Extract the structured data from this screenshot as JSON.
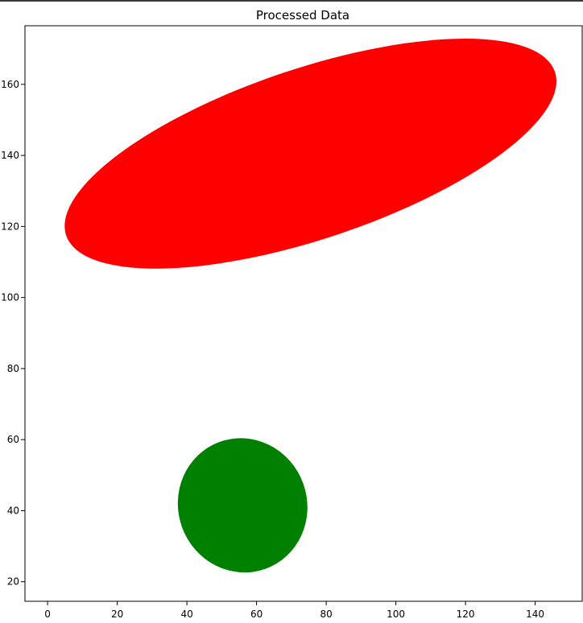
{
  "chart_data": {
    "type": "scatter",
    "title": "Processed Data",
    "xlabel": "",
    "ylabel": "",
    "xlim": [
      -6.5,
      153.5
    ],
    "ylim": [
      14.5,
      176.5
    ],
    "x_ticks": [
      0,
      20,
      40,
      60,
      80,
      100,
      120,
      140
    ],
    "y_ticks": [
      20,
      40,
      60,
      80,
      100,
      120,
      140,
      160
    ],
    "grid": false,
    "shapes": [
      {
        "kind": "ellipse",
        "color": "#ff0000",
        "center": [
          75.5,
          140.5
        ],
        "width_data": 148,
        "height_data": 48,
        "angle_deg": -18.5
      },
      {
        "kind": "ellipse",
        "color": "#008000",
        "center": [
          56,
          41.5
        ],
        "width_data": 37,
        "height_data": 38,
        "angle_deg": -20
      }
    ]
  }
}
